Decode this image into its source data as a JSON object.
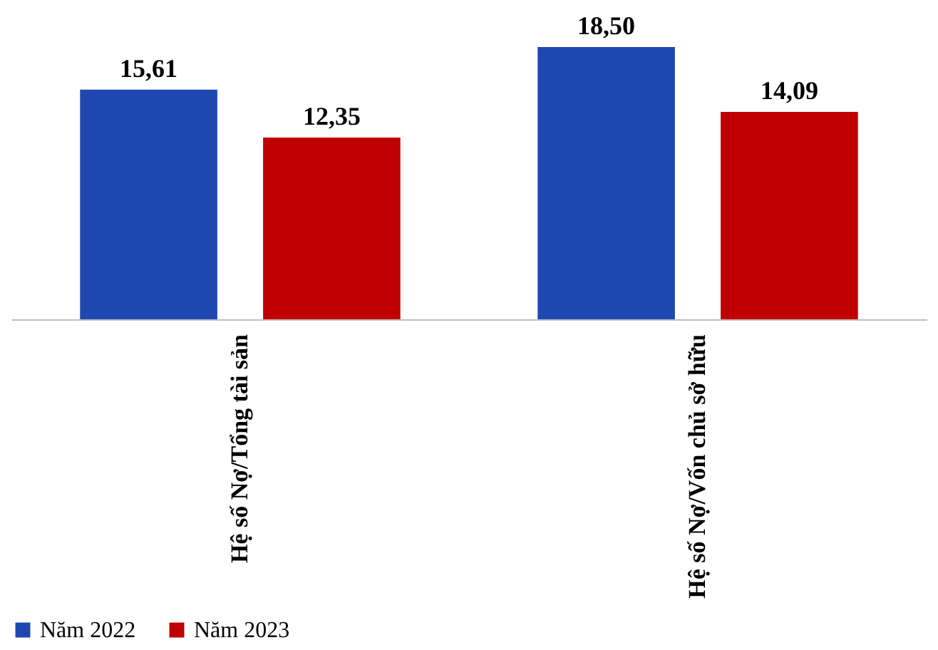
{
  "chart_data": {
    "type": "bar",
    "categories": [
      "Hệ số Nợ/Tổng tài sản",
      "Hệ số Nợ/Vốn chủ sở hữu"
    ],
    "series": [
      {
        "name": "Năm 2022",
        "color": "#1f47b0",
        "values": [
          15.61,
          18.5
        ],
        "value_labels": [
          "15,61",
          "18,50"
        ]
      },
      {
        "name": "Năm 2023",
        "color": "#c00000",
        "values": [
          12.35,
          14.09
        ],
        "value_labels": [
          "12,35",
          "14,09"
        ]
      }
    ],
    "legend": "bottom",
    "grid": false
  }
}
